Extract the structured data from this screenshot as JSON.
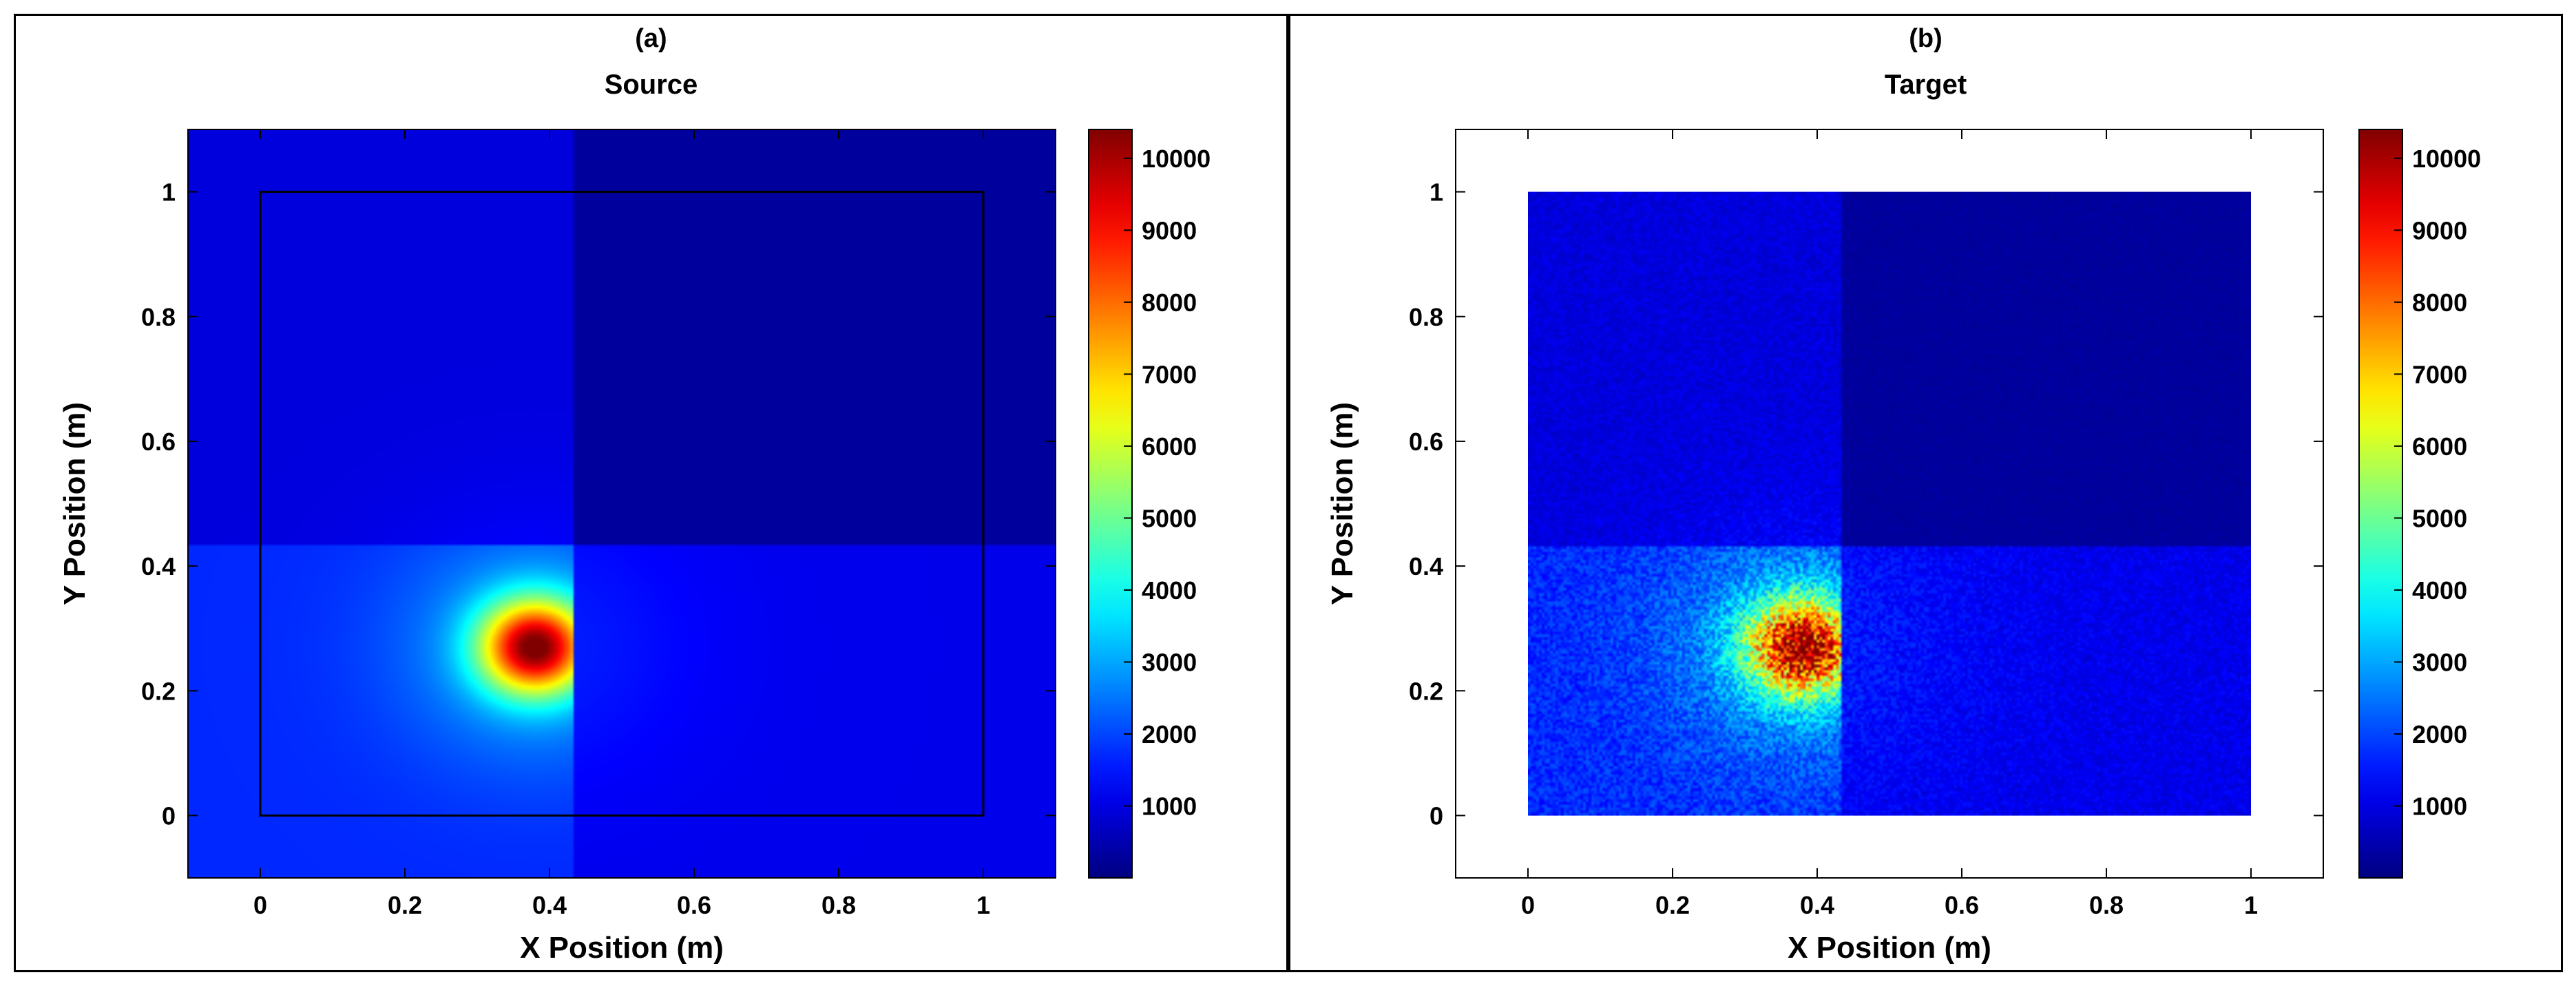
{
  "chart_data": [
    {
      "type": "heatmap",
      "panel_letter": "(a)",
      "title": "Source",
      "xlabel": "X Position (m)",
      "ylabel": "Y Position (m)",
      "xlim": [
        -0.1,
        1.1
      ],
      "ylim": [
        -0.1,
        1.1
      ],
      "x_ticks": [
        "0",
        "0.2",
        "0.4",
        "0.6",
        "0.8",
        "1"
      ],
      "y_ticks": [
        "0",
        "0.2",
        "0.4",
        "0.6",
        "0.8",
        "1"
      ],
      "colorbar": {
        "min": 0,
        "max": 10400,
        "colormap": "jet",
        "ticks": [
          "1000",
          "2000",
          "3000",
          "4000",
          "5000",
          "6000",
          "7000",
          "8000",
          "9000",
          "10000"
        ]
      },
      "field_extent": {
        "x": [
          -0.1,
          1.1
        ],
        "y": [
          -0.1,
          1.1
        ]
      },
      "boundary_box": {
        "x": [
          0,
          1
        ],
        "y": [
          0,
          1
        ]
      },
      "noise": false,
      "quadrant_split": {
        "x": 0.433,
        "y": 0.433
      },
      "peak": {
        "x": 0.38,
        "y": 0.27,
        "value": 9200
      },
      "quadrant_levels": {
        "bottom_left": 1700,
        "bottom_right": 1100,
        "top_left": 950,
        "top_right": 300
      }
    },
    {
      "type": "heatmap",
      "panel_letter": "(b)",
      "title": "Target",
      "xlabel": "X Position (m)",
      "ylabel": "Y Position (m)",
      "xlim": [
        -0.1,
        1.1
      ],
      "ylim": [
        -0.1,
        1.1
      ],
      "x_ticks": [
        "0",
        "0.2",
        "0.4",
        "0.6",
        "0.8",
        "1"
      ],
      "y_ticks": [
        "0",
        "0.2",
        "0.4",
        "0.6",
        "0.8",
        "1"
      ],
      "colorbar": {
        "min": 0,
        "max": 10400,
        "colormap": "jet",
        "ticks": [
          "1000",
          "2000",
          "3000",
          "4000",
          "5000",
          "6000",
          "7000",
          "8000",
          "9000",
          "10000"
        ]
      },
      "field_extent": {
        "x": [
          0,
          1
        ],
        "y": [
          0,
          1
        ]
      },
      "noise": true,
      "quadrant_split": {
        "x": 0.433,
        "y": 0.433
      },
      "peak": {
        "x": 0.38,
        "y": 0.27,
        "value": 9000
      },
      "quadrant_levels": {
        "bottom_left": 1700,
        "bottom_right": 1100,
        "top_left": 950,
        "top_right": 300
      }
    }
  ]
}
